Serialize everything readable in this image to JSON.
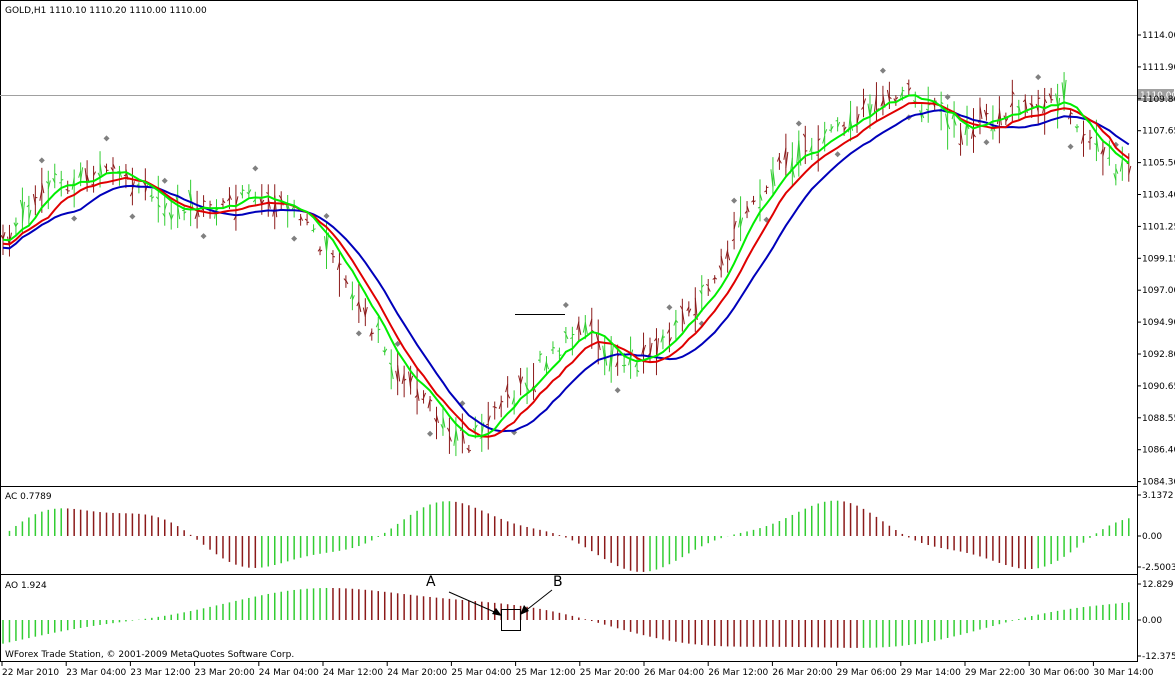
{
  "main_chart": {
    "header": "GOLD,H1  1110.10 1110.20 1110.00 1110.00",
    "price_tag": "1110.00",
    "y_ticks": [
      "1114.00",
      "1111.90",
      "1109.80",
      "1107.65",
      "1105.50",
      "1103.40",
      "1101.25",
      "1099.15",
      "1097.00",
      "1094.90",
      "1092.80",
      "1090.65",
      "1088.55",
      "1086.40",
      "1084.30"
    ]
  },
  "ac_panel": {
    "label": "AC 0.7789",
    "y_ticks": [
      "3.1372",
      "0.00",
      "-2.5003"
    ]
  },
  "ao_panel": {
    "label": "AO 1.924",
    "y_ticks": [
      "12.829",
      "0.00",
      "-12.375"
    ],
    "annotation_a": "A",
    "annotation_b": "B",
    "copyright": "WForex Trade Station, © 2001-2009 MetaQuotes Software Corp."
  },
  "x_ticks": [
    "22 Mar 2010",
    "23 Mar 04:00",
    "23 Mar 12:00",
    "23 Mar 20:00",
    "24 Mar 04:00",
    "24 Mar 12:00",
    "24 Mar 20:00",
    "25 Mar 04:00",
    "25 Mar 12:00",
    "25 Mar 20:00",
    "26 Mar 04:00",
    "26 Mar 12:00",
    "26 Mar 20:00",
    "29 Mar 06:00",
    "29 Mar 14:00",
    "29 Mar 22:00",
    "30 Mar 06:00",
    "30 Mar 14:00"
  ],
  "colors": {
    "bull": "#32cd32",
    "bear": "#8b1a1a",
    "fast_ma": "#00ee00",
    "mid_ma": "#e00000",
    "slow_ma": "#0000bb"
  }
}
